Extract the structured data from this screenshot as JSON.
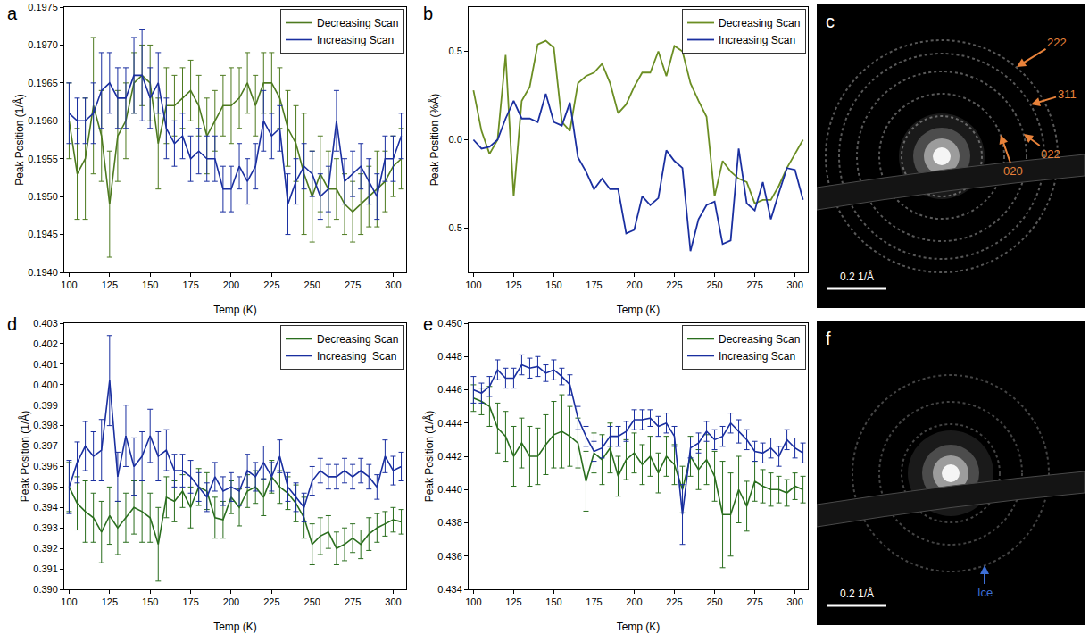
{
  "chart_data": [
    {
      "type": "line",
      "panel_label": "a",
      "x_label": "Temp (K)",
      "y_label": "Peak Position (1/Å)",
      "grid": false,
      "legend": "upper right",
      "x": [
        100,
        105,
        110,
        115,
        120,
        125,
        130,
        135,
        140,
        145,
        150,
        155,
        160,
        165,
        170,
        175,
        180,
        185,
        190,
        195,
        200,
        205,
        210,
        215,
        220,
        225,
        230,
        235,
        240,
        245,
        250,
        255,
        260,
        265,
        270,
        275,
        280,
        285,
        290,
        295,
        300,
        305
      ],
      "xlim": [
        97,
        308
      ],
      "xticks": [
        100,
        125,
        150,
        175,
        200,
        225,
        250,
        275,
        300
      ],
      "ylim": [
        0.194,
        0.1975
      ],
      "yticks": [
        {
          "value": 0.194,
          "label": "0.1940"
        },
        0.1945,
        {
          "value": 0.195,
          "label": "0.1950"
        },
        0.1955,
        {
          "value": 0.196,
          "label": "0.1960"
        },
        0.1965,
        {
          "value": 0.197,
          "label": "0.1970"
        },
        0.1975
      ],
      "series": [
        {
          "name": "Decreasing Scan",
          "color": "#4d7a1f",
          "values": [
            0.196,
            0.1953,
            0.1955,
            0.1962,
            0.1958,
            0.1949,
            0.1958,
            0.196,
            0.1965,
            0.1966,
            0.1965,
            0.1957,
            0.1962,
            0.1962,
            0.1963,
            0.1964,
            0.1962,
            0.1958,
            0.196,
            0.1962,
            0.1962,
            0.1963,
            0.1965,
            0.1962,
            0.1965,
            0.1965,
            0.1963,
            0.1959,
            0.1957,
            0.1953,
            0.195,
            0.1953,
            0.1951,
            0.1951,
            0.1949,
            0.1948,
            0.1949,
            0.195,
            0.1951,
            0.1952,
            0.1954,
            0.1955
          ],
          "errors": [
            0.0005,
            0.0006,
            0.0008,
            0.0009,
            0.0006,
            0.0007,
            0.0006,
            0.0005,
            0.0004,
            0.0004,
            0.0005,
            0.0006,
            0.0005,
            0.0004,
            0.0004,
            0.0004,
            0.0004,
            0.0005,
            0.0004,
            0.0004,
            0.0005,
            0.0004,
            0.0004,
            0.0004,
            0.0004,
            0.0004,
            0.0004,
            0.0005,
            0.0005,
            0.0008,
            0.0006,
            0.0005,
            0.0005,
            0.0004,
            0.0004,
            0.0004,
            0.0004,
            0.0004,
            0.0005,
            0.0004,
            0.0004,
            0.0004
          ]
        },
        {
          "name": "Increasing Scan",
          "color": "#1a2fa0",
          "values": [
            0.1961,
            0.196,
            0.196,
            0.1961,
            0.1964,
            0.1965,
            0.1963,
            0.1963,
            0.1966,
            0.1966,
            0.1963,
            0.1965,
            0.1959,
            0.1957,
            0.1958,
            0.1955,
            0.1956,
            0.1955,
            0.1955,
            0.1951,
            0.1951,
            0.1954,
            0.1952,
            0.1954,
            0.196,
            0.1958,
            0.1959,
            0.1949,
            0.1952,
            0.1954,
            0.1953,
            0.195,
            0.1951,
            0.196,
            0.1952,
            0.1953,
            0.1954,
            0.1952,
            0.195,
            0.1955,
            0.1955,
            0.1958
          ],
          "errors": [
            0.0004,
            0.0003,
            0.0003,
            0.0004,
            0.0005,
            0.0004,
            0.0004,
            0.0004,
            0.0005,
            0.0006,
            0.0004,
            0.0004,
            0.0004,
            0.0003,
            0.0003,
            0.0003,
            0.0003,
            0.0003,
            0.0003,
            0.0003,
            0.0003,
            0.0003,
            0.0003,
            0.0003,
            0.0004,
            0.0003,
            0.0003,
            0.0004,
            0.0003,
            0.0003,
            0.0003,
            0.0003,
            0.0003,
            0.0004,
            0.0003,
            0.0003,
            0.0003,
            0.0003,
            0.0003,
            0.0003,
            0.0003,
            0.0003
          ]
        }
      ]
    },
    {
      "type": "line",
      "panel_label": "b",
      "x_label": "Temp (K)",
      "y_label": "Peak Position (%Å)",
      "grid": false,
      "legend": "upper right",
      "x": [
        100,
        105,
        110,
        115,
        120,
        125,
        130,
        135,
        140,
        145,
        150,
        155,
        160,
        165,
        170,
        175,
        180,
        185,
        190,
        195,
        200,
        205,
        210,
        215,
        220,
        225,
        230,
        235,
        240,
        245,
        250,
        255,
        260,
        265,
        270,
        275,
        280,
        285,
        290,
        295,
        300,
        305
      ],
      "xlim": [
        97,
        308
      ],
      "xticks": [
        100,
        125,
        150,
        175,
        200,
        225,
        250,
        275,
        300
      ],
      "ylim": [
        -0.75,
        0.75
      ],
      "yticks": [
        -0.5,
        {
          "value": 0,
          "label": "0.0"
        },
        0.5
      ],
      "series": [
        {
          "name": "Decreasing Scan",
          "color": "#6b8e23",
          "values": [
            0.28,
            0.05,
            -0.08,
            0.0,
            0.48,
            -0.32,
            0.22,
            0.3,
            0.54,
            0.56,
            0.52,
            0.1,
            0.05,
            0.32,
            0.36,
            0.38,
            0.43,
            0.32,
            0.15,
            0.2,
            0.3,
            0.38,
            0.38,
            0.5,
            0.36,
            0.53,
            0.5,
            0.32,
            0.22,
            0.13,
            -0.32,
            -0.12,
            -0.18,
            -0.22,
            -0.24,
            -0.36,
            -0.34,
            -0.34,
            -0.26,
            -0.16,
            -0.08,
            0.0
          ]
        },
        {
          "name": "Increasing Scan",
          "color": "#1a2fa0",
          "values": [
            0.0,
            -0.05,
            -0.04,
            0.0,
            0.12,
            0.22,
            0.12,
            0.12,
            0.1,
            0.26,
            0.1,
            0.08,
            0.21,
            -0.1,
            -0.18,
            -0.28,
            -0.22,
            -0.28,
            -0.28,
            -0.53,
            -0.51,
            -0.32,
            -0.37,
            -0.33,
            -0.06,
            -0.12,
            -0.16,
            -0.63,
            -0.45,
            -0.37,
            -0.35,
            -0.59,
            -0.57,
            -0.05,
            -0.36,
            -0.4,
            -0.24,
            -0.45,
            -0.3,
            -0.16,
            -0.17,
            -0.34
          ]
        }
      ]
    },
    {
      "type": "image",
      "panel_label": "c",
      "annotations": [
        "222",
        "311",
        "022",
        "020"
      ],
      "color": "#e8823a",
      "scale_bar": "0.2 1/Å"
    },
    {
      "type": "line",
      "panel_label": "d",
      "x_label": "Temp (K)",
      "y_label": "Peak Position (1/Å)",
      "grid": false,
      "legend": "upper right",
      "x": [
        100,
        105,
        110,
        115,
        120,
        125,
        130,
        135,
        140,
        145,
        150,
        155,
        160,
        165,
        170,
        175,
        180,
        185,
        190,
        195,
        200,
        205,
        210,
        215,
        220,
        225,
        230,
        235,
        240,
        245,
        250,
        255,
        260,
        265,
        270,
        275,
        280,
        285,
        290,
        295,
        300,
        305
      ],
      "xlim": [
        97,
        308
      ],
      "xticks": [
        100,
        125,
        150,
        175,
        200,
        225,
        250,
        275,
        300
      ],
      "ylim": [
        0.39,
        0.403
      ],
      "yticks": [
        {
          "value": 0.39,
          "label": "0.390"
        },
        0.391,
        0.392,
        0.393,
        0.394,
        0.395,
        0.396,
        0.397,
        0.398,
        0.399,
        {
          "value": 0.4,
          "label": "0.400"
        },
        0.401,
        0.402,
        0.403
      ],
      "series": [
        {
          "name": "Decreasing Scan",
          "color": "#2a6e1e",
          "values": [
            0.395,
            0.3942,
            0.3938,
            0.3935,
            0.3928,
            0.3936,
            0.393,
            0.3935,
            0.394,
            0.3938,
            0.3935,
            0.3922,
            0.3945,
            0.3943,
            0.3948,
            0.394,
            0.395,
            0.3948,
            0.3935,
            0.3934,
            0.3945,
            0.394,
            0.3948,
            0.395,
            0.3945,
            0.3955,
            0.395,
            0.3947,
            0.3942,
            0.3935,
            0.3922,
            0.3926,
            0.3928,
            0.392,
            0.3922,
            0.3925,
            0.3922,
            0.3927,
            0.393,
            0.3932,
            0.3934,
            0.3933
          ],
          "errors": [
            0.0012,
            0.0013,
            0.0015,
            0.0012,
            0.0015,
            0.0014,
            0.0013,
            0.0012,
            0.0013,
            0.0015,
            0.0012,
            0.0018,
            0.001,
            0.001,
            0.0008,
            0.001,
            0.0009,
            0.0009,
            0.001,
            0.0009,
            0.0008,
            0.0009,
            0.0008,
            0.0008,
            0.0009,
            0.0008,
            0.0008,
            0.0008,
            0.0009,
            0.001,
            0.001,
            0.0009,
            0.0008,
            0.0008,
            0.0008,
            0.0007,
            0.0007,
            0.0008,
            0.0007,
            0.0006,
            0.0006,
            0.0006
          ]
        },
        {
          "name": "Increasing  Scan",
          "color": "#1a2fa0",
          "values": [
            0.395,
            0.3962,
            0.397,
            0.3965,
            0.3968,
            0.4002,
            0.3955,
            0.3975,
            0.396,
            0.3965,
            0.3975,
            0.3965,
            0.3968,
            0.3958,
            0.3958,
            0.3955,
            0.395,
            0.3945,
            0.3955,
            0.3948,
            0.395,
            0.3948,
            0.3958,
            0.3955,
            0.3962,
            0.3955,
            0.3965,
            0.395,
            0.3945,
            0.394,
            0.3953,
            0.3958,
            0.3955,
            0.3955,
            0.3958,
            0.3955,
            0.3958,
            0.3955,
            0.395,
            0.3965,
            0.3958,
            0.396
          ],
          "errors": [
            0.0013,
            0.001,
            0.0012,
            0.0012,
            0.0015,
            0.0022,
            0.0012,
            0.0015,
            0.0014,
            0.0012,
            0.0013,
            0.0012,
            0.001,
            0.0008,
            0.0008,
            0.0008,
            0.0007,
            0.0007,
            0.0007,
            0.0007,
            0.0007,
            0.0007,
            0.0008,
            0.0007,
            0.0008,
            0.0007,
            0.0008,
            0.0007,
            0.0007,
            0.0007,
            0.0007,
            0.0006,
            0.0006,
            0.0006,
            0.0006,
            0.0006,
            0.0006,
            0.0006,
            0.0006,
            0.0008,
            0.0007,
            0.0007
          ]
        }
      ]
    },
    {
      "type": "line",
      "panel_label": "e",
      "x_label": "Temp (K)",
      "y_label": "Peak Position (1/Å)",
      "grid": false,
      "legend": "upper right",
      "x": [
        100,
        105,
        110,
        115,
        120,
        125,
        130,
        135,
        140,
        145,
        150,
        155,
        160,
        165,
        170,
        175,
        180,
        185,
        190,
        195,
        200,
        205,
        210,
        215,
        220,
        225,
        230,
        235,
        240,
        245,
        250,
        255,
        260,
        265,
        270,
        275,
        280,
        285,
        290,
        295,
        300,
        305
      ],
      "xlim": [
        97,
        308
      ],
      "xticks": [
        100,
        125,
        150,
        175,
        200,
        225,
        250,
        275,
        300
      ],
      "ylim": [
        0.434,
        0.45
      ],
      "yticks": [
        0.434,
        0.436,
        0.438,
        {
          "value": 0.44,
          "label": "0.440"
        },
        0.442,
        0.444,
        0.446,
        0.448,
        {
          "value": 0.45,
          "label": "0.450"
        }
      ],
      "series": [
        {
          "name": "Decreasing Scan",
          "color": "#2a6e1e",
          "values": [
            0.4455,
            0.4453,
            0.445,
            0.4437,
            0.4432,
            0.442,
            0.4428,
            0.442,
            0.442,
            0.4427,
            0.4433,
            0.4435,
            0.4432,
            0.4428,
            0.4405,
            0.4422,
            0.4418,
            0.4425,
            0.4408,
            0.4418,
            0.4422,
            0.4415,
            0.442,
            0.441,
            0.442,
            0.4415,
            0.44,
            0.442,
            0.4412,
            0.4418,
            0.4408,
            0.4385,
            0.4385,
            0.44,
            0.439,
            0.4405,
            0.4402,
            0.44,
            0.44,
            0.4398,
            0.4402,
            0.44
          ],
          "errors": [
            0.0008,
            0.0008,
            0.0012,
            0.0015,
            0.0015,
            0.0018,
            0.0015,
            0.0018,
            0.0017,
            0.0018,
            0.002,
            0.0022,
            0.0018,
            0.0015,
            0.0018,
            0.0012,
            0.0015,
            0.0015,
            0.0012,
            0.0012,
            0.0012,
            0.0012,
            0.0012,
            0.0012,
            0.0012,
            0.0012,
            0.0014,
            0.0012,
            0.0012,
            0.0015,
            0.0015,
            0.0032,
            0.0025,
            0.002,
            0.0015,
            0.0012,
            0.001,
            0.001,
            0.0008,
            0.0008,
            0.0008,
            0.0008
          ]
        },
        {
          "name": "Increasing Scan",
          "color": "#1a2fa0",
          "values": [
            0.446,
            0.4458,
            0.4462,
            0.4472,
            0.4467,
            0.4467,
            0.4475,
            0.4473,
            0.4474,
            0.447,
            0.4472,
            0.4468,
            0.4463,
            0.4443,
            0.4432,
            0.4423,
            0.4425,
            0.4432,
            0.4432,
            0.4435,
            0.4442,
            0.4442,
            0.4443,
            0.4438,
            0.444,
            0.4432,
            0.4385,
            0.4425,
            0.4428,
            0.4435,
            0.443,
            0.4432,
            0.444,
            0.4435,
            0.443,
            0.4423,
            0.4422,
            0.4425,
            0.442,
            0.443,
            0.4425,
            0.4422
          ],
          "errors": [
            0.0008,
            0.0006,
            0.0006,
            0.0006,
            0.0006,
            0.0006,
            0.0006,
            0.0006,
            0.0006,
            0.0005,
            0.0006,
            0.0005,
            0.0006,
            0.0007,
            0.0006,
            0.0006,
            0.0006,
            0.0006,
            0.0006,
            0.0006,
            0.0006,
            0.0006,
            0.0005,
            0.0006,
            0.0006,
            0.0006,
            0.0018,
            0.0006,
            0.0006,
            0.0006,
            0.0006,
            0.0006,
            0.0006,
            0.0007,
            0.0006,
            0.0006,
            0.0006,
            0.0006,
            0.0006,
            0.0006,
            0.0006,
            0.0006
          ]
        }
      ]
    },
    {
      "type": "image",
      "panel_label": "f",
      "annotations": [
        "Ice"
      ],
      "color": "#3d6fd6",
      "scale_bar": "0.2 1/Å"
    }
  ]
}
